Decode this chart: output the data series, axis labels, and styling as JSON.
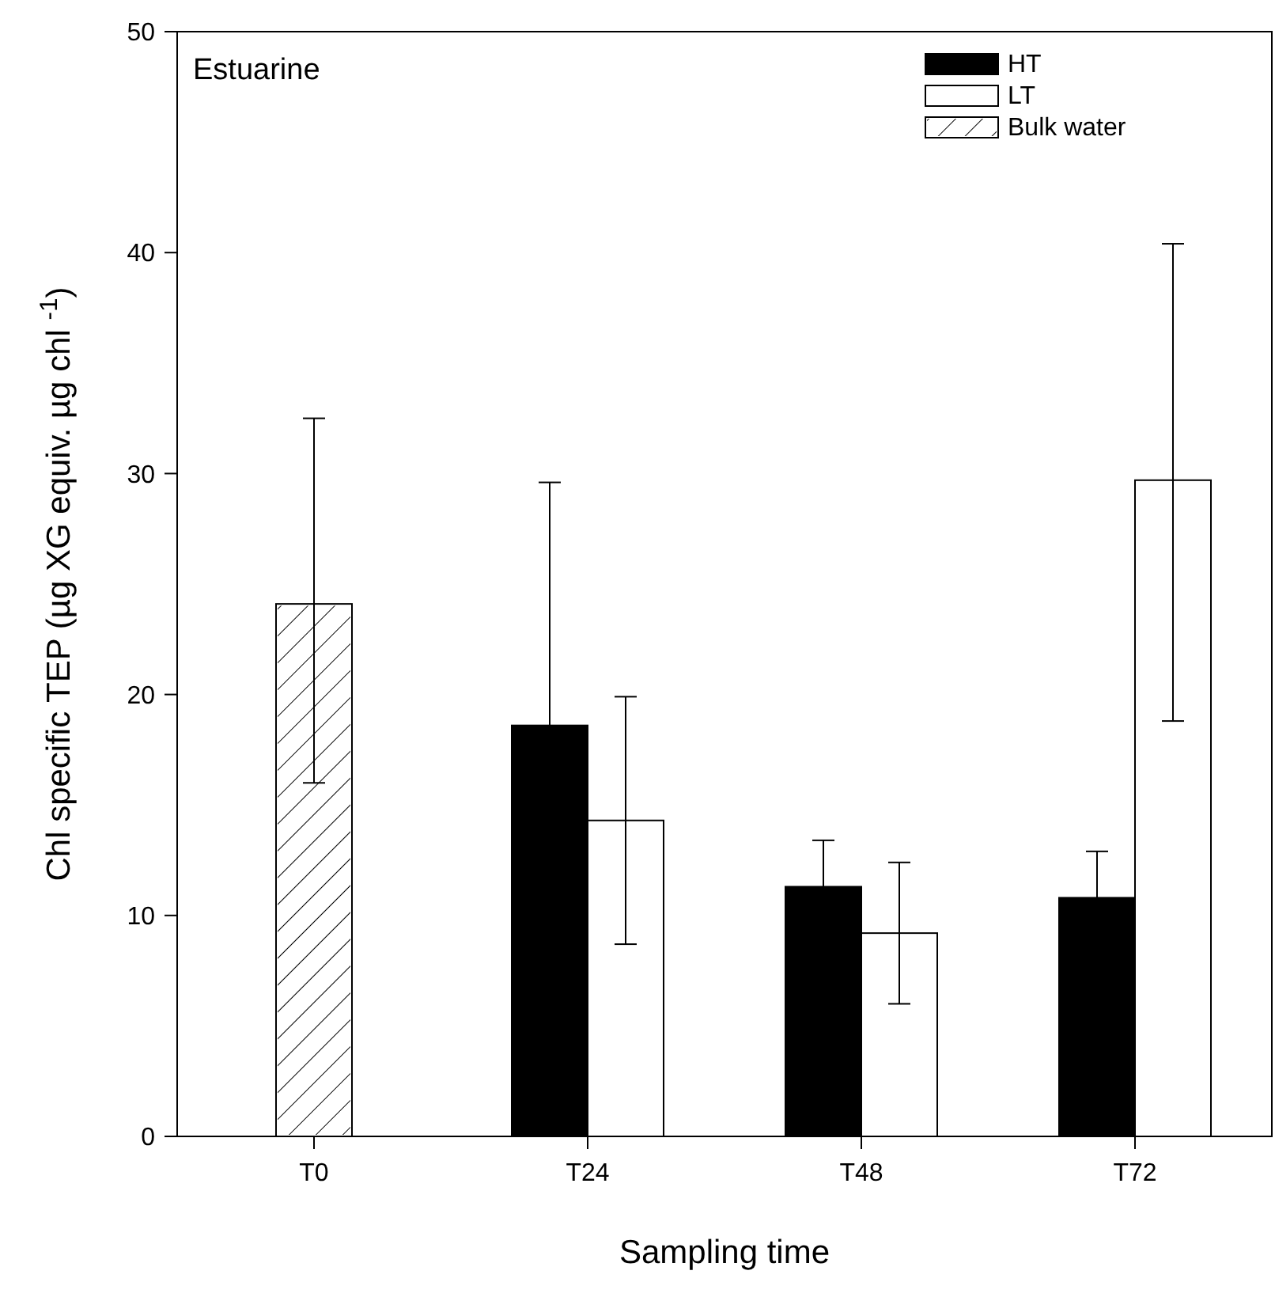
{
  "chart_data": {
    "type": "bar",
    "title": "Estuarine",
    "xlabel": "Sampling time",
    "ylabel": "Chl specific TEP (µg XG equiv. µg chl $^{-1}$)",
    "categories": [
      "T0",
      "T24",
      "T48",
      "T72"
    ],
    "series": [
      {
        "name": "HT",
        "color": "#000000",
        "values": [
          null,
          18.6,
          11.3,
          10.8
        ],
        "errors": [
          null,
          11,
          2.1,
          2.1
        ]
      },
      {
        "name": "LT",
        "color": "#ffffff",
        "values": [
          null,
          14.3,
          9.2,
          29.7
        ],
        "errors": [
          null,
          [
            8.7,
            19.9
          ],
          [
            6.0,
            12.4
          ],
          [
            18.8,
            40.4
          ]
        ]
      },
      {
        "name": "Bulk water",
        "color": "#ffffff",
        "values": [
          24.1,
          null,
          null,
          null
        ],
        "errors": [
          [
            16.0,
            32.5
          ],
          null,
          null,
          null
        ]
      }
    ],
    "ylim": [
      0,
      50
    ],
    "yticks": [
      0,
      10,
      20,
      30,
      40,
      50
    ],
    "grid": false,
    "legend": "top right"
  }
}
